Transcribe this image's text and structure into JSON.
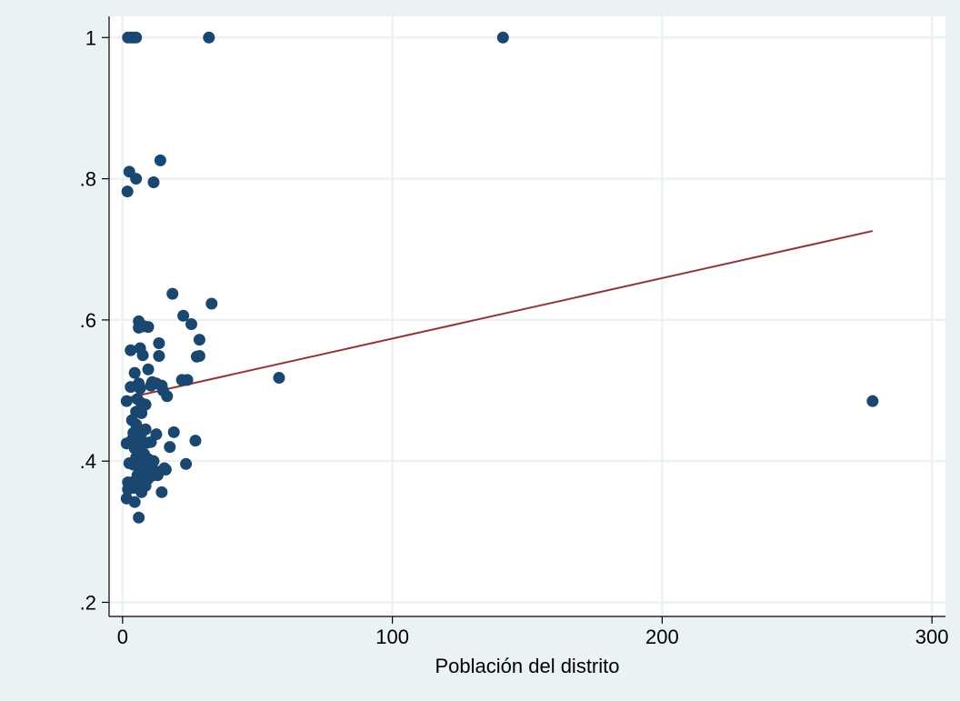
{
  "chart_data": {
    "type": "scatter",
    "title": "",
    "xlabel": "Población del distrito",
    "ylabel": "",
    "xlim": [
      -5,
      305
    ],
    "ylim": [
      0.18,
      1.03
    ],
    "xticks": [
      0,
      100,
      200,
      300
    ],
    "xtick_labels": [
      "0",
      "100",
      "200",
      "300"
    ],
    "yticks": [
      0.2,
      0.4,
      0.6,
      0.8,
      1.0
    ],
    "ytick_labels": [
      ".2",
      ".4",
      ".6",
      ".8",
      "1"
    ],
    "grid": true,
    "legend": "none",
    "colors": {
      "outer_background": "#eaf2f3",
      "plot_background": "#ffffff",
      "grid": "#eaf2f3",
      "marker": "#1a476f",
      "fit_line": "#90353b"
    },
    "series": [
      {
        "kind": "points",
        "points": [
          [
            2,
            1.0
          ],
          [
            3,
            1.0
          ],
          [
            4,
            1.0
          ],
          [
            5,
            1.0
          ],
          [
            32,
            1.0
          ],
          [
            141,
            1.0
          ],
          [
            14,
            0.826
          ],
          [
            2.5,
            0.81
          ],
          [
            5,
            0.8
          ],
          [
            11.5,
            0.795
          ],
          [
            1.8,
            0.782
          ],
          [
            18.5,
            0.637
          ],
          [
            33,
            0.623
          ],
          [
            22.5,
            0.606
          ],
          [
            6,
            0.598
          ],
          [
            25.5,
            0.594
          ],
          [
            8,
            0.591
          ],
          [
            9.5,
            0.59
          ],
          [
            6,
            0.589
          ],
          [
            13.5,
            0.567
          ],
          [
            28.5,
            0.572
          ],
          [
            6.5,
            0.56
          ],
          [
            3,
            0.557
          ],
          [
            7.5,
            0.55
          ],
          [
            13.5,
            0.549
          ],
          [
            27.5,
            0.548
          ],
          [
            28.5,
            0.549
          ],
          [
            9.5,
            0.53
          ],
          [
            4.5,
            0.525
          ],
          [
            58,
            0.518
          ],
          [
            11,
            0.512
          ],
          [
            22,
            0.515
          ],
          [
            24,
            0.515
          ],
          [
            6,
            0.51
          ],
          [
            10.5,
            0.507
          ],
          [
            12.5,
            0.51
          ],
          [
            14.5,
            0.507
          ],
          [
            3,
            0.505
          ],
          [
            6.5,
            0.503
          ],
          [
            15,
            0.5
          ],
          [
            16.5,
            0.492
          ],
          [
            5.5,
            0.488
          ],
          [
            1.5,
            0.485
          ],
          [
            7,
            0.482
          ],
          [
            8.5,
            0.48
          ],
          [
            5,
            0.47
          ],
          [
            7,
            0.468
          ],
          [
            3.5,
            0.458
          ],
          [
            5,
            0.452
          ],
          [
            4,
            0.44
          ],
          [
            8.5,
            0.445
          ],
          [
            7,
            0.44
          ],
          [
            12.5,
            0.438
          ],
          [
            19,
            0.441
          ],
          [
            3.5,
            0.43
          ],
          [
            5.5,
            0.428
          ],
          [
            1.5,
            0.425
          ],
          [
            9,
            0.426
          ],
          [
            10.5,
            0.427
          ],
          [
            27,
            0.429
          ],
          [
            4.5,
            0.418
          ],
          [
            6.5,
            0.415
          ],
          [
            8,
            0.41
          ],
          [
            17.5,
            0.42
          ],
          [
            5,
            0.405
          ],
          [
            9.5,
            0.403
          ],
          [
            11.5,
            0.4
          ],
          [
            2.5,
            0.397
          ],
          [
            4,
            0.395
          ],
          [
            6.5,
            0.395
          ],
          [
            8.5,
            0.39
          ],
          [
            10.5,
            0.392
          ],
          [
            13,
            0.385
          ],
          [
            15.5,
            0.39
          ],
          [
            16,
            0.388
          ],
          [
            23.5,
            0.396
          ],
          [
            5.5,
            0.38
          ],
          [
            7.5,
            0.378
          ],
          [
            9.5,
            0.375
          ],
          [
            11.5,
            0.38
          ],
          [
            13,
            0.38
          ],
          [
            3.5,
            0.37
          ],
          [
            2,
            0.37
          ],
          [
            6.5,
            0.368
          ],
          [
            8.5,
            0.365
          ],
          [
            2,
            0.36
          ],
          [
            4,
            0.362
          ],
          [
            7,
            0.356
          ],
          [
            14.5,
            0.356
          ],
          [
            1.5,
            0.347
          ],
          [
            4.5,
            0.342
          ],
          [
            6,
            0.32
          ],
          [
            278,
            0.485
          ]
        ]
      },
      {
        "kind": "line",
        "points": [
          [
            0,
            0.488
          ],
          [
            278,
            0.726
          ]
        ]
      }
    ]
  }
}
